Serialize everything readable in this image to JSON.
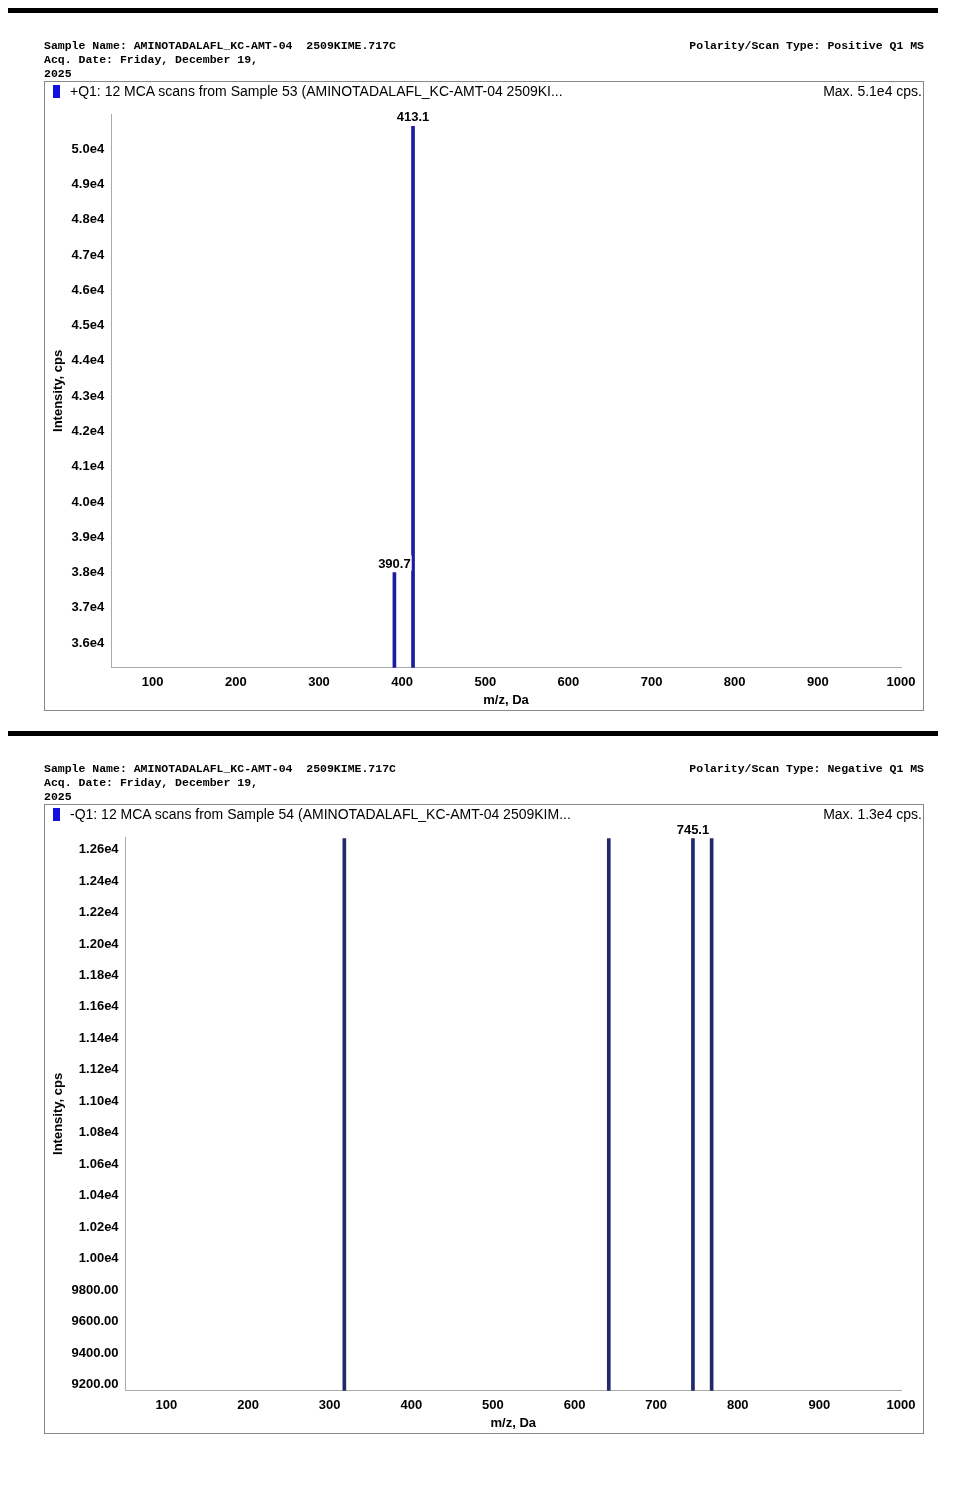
{
  "chart_data": [
    {
      "type": "bar",
      "title": "+Q1: 12 MCA scans from Sample 53 (AMINOTADALAFL_KC-AMT-04  2509KI...",
      "subtitle": "Max. 5.1e4 cps.",
      "xlabel": "m/z, Da",
      "ylabel": "Intensity, cps",
      "x": [
        390.7,
        413.1
      ],
      "values": [
        38000,
        50650
      ],
      "color": "#1c1ca0",
      "xlim": [
        50,
        1000
      ],
      "xticks": [
        100,
        200,
        300,
        400,
        500,
        600,
        700,
        800,
        900,
        1000
      ],
      "ylim": [
        35300,
        51000
      ],
      "yticks": [
        {
          "value": 36000,
          "label": "3.6e4"
        },
        {
          "value": 37000,
          "label": "3.7e4"
        },
        {
          "value": 38000,
          "label": "3.8e4"
        },
        {
          "value": 39000,
          "label": "3.9e4"
        },
        {
          "value": 40000,
          "label": "4.0e4"
        },
        {
          "value": 41000,
          "label": "4.1e4"
        },
        {
          "value": 42000,
          "label": "4.2e4"
        },
        {
          "value": 43000,
          "label": "4.3e4"
        },
        {
          "value": 44000,
          "label": "4.4e4"
        },
        {
          "value": 45000,
          "label": "4.5e4"
        },
        {
          "value": 46000,
          "label": "4.6e4"
        },
        {
          "value": 47000,
          "label": "4.7e4"
        },
        {
          "value": 48000,
          "label": "4.8e4"
        },
        {
          "value": 49000,
          "label": "4.9e4"
        },
        {
          "value": 50000,
          "label": "5.0e4"
        }
      ],
      "grid": false,
      "legend": false,
      "annotations": [
        "Sample Name: AMINOTADALAFL_KC-AMT-04  2509KIME.717C",
        "Acq. Date: Friday, December 19, 2025",
        "Polarity/Scan Type: Positive Q1 MS",
        {
          "text": "413.1",
          "x": 413.1,
          "y": 50650
        },
        {
          "text": "390.7",
          "x": 390.7,
          "y": 38000
        }
      ]
    },
    {
      "type": "bar",
      "title": "-Q1: 12 MCA scans from Sample 54 (AMINOTADALAFL_KC-AMT-04  2509KIM...",
      "subtitle": "Max. 1.3e4 cps.",
      "xlabel": "m/z, Da",
      "ylabel": "Intensity, cps",
      "x": [
        318,
        642,
        745.1,
        768
      ],
      "values": [
        12670,
        12670,
        12670,
        12670
      ],
      "color": "#1f2a6a",
      "xlim": [
        50,
        1000
      ],
      "xticks": [
        100,
        200,
        300,
        400,
        500,
        600,
        700,
        800,
        900,
        1000
      ],
      "ylim": [
        9160,
        12680
      ],
      "yticks": [
        {
          "value": 9200,
          "label": "9200.00"
        },
        {
          "value": 9400,
          "label": "9400.00"
        },
        {
          "value": 9600,
          "label": "9600.00"
        },
        {
          "value": 9800,
          "label": "9800.00"
        },
        {
          "value": 10000,
          "label": "1.00e4"
        },
        {
          "value": 10200,
          "label": "1.02e4"
        },
        {
          "value": 10400,
          "label": "1.04e4"
        },
        {
          "value": 10600,
          "label": "1.06e4"
        },
        {
          "value": 10800,
          "label": "1.08e4"
        },
        {
          "value": 11000,
          "label": "1.10e4"
        },
        {
          "value": 11200,
          "label": "1.12e4"
        },
        {
          "value": 11400,
          "label": "1.14e4"
        },
        {
          "value": 11600,
          "label": "1.16e4"
        },
        {
          "value": 11800,
          "label": "1.18e4"
        },
        {
          "value": 12000,
          "label": "1.20e4"
        },
        {
          "value": 12200,
          "label": "1.22e4"
        },
        {
          "value": 12400,
          "label": "1.24e4"
        },
        {
          "value": 12600,
          "label": "1.26e4"
        }
      ],
      "grid": false,
      "legend": false,
      "annotations": [
        "Sample Name: AMINOTADALAFL_KC-AMT-04  2509KIME.717C",
        "Acq. Date: Friday, December 19, 2025",
        "Polarity/Scan Type: Negative Q1 MS",
        {
          "text": "745.1",
          "x": 745.1,
          "y": 12670
        }
      ]
    }
  ]
}
